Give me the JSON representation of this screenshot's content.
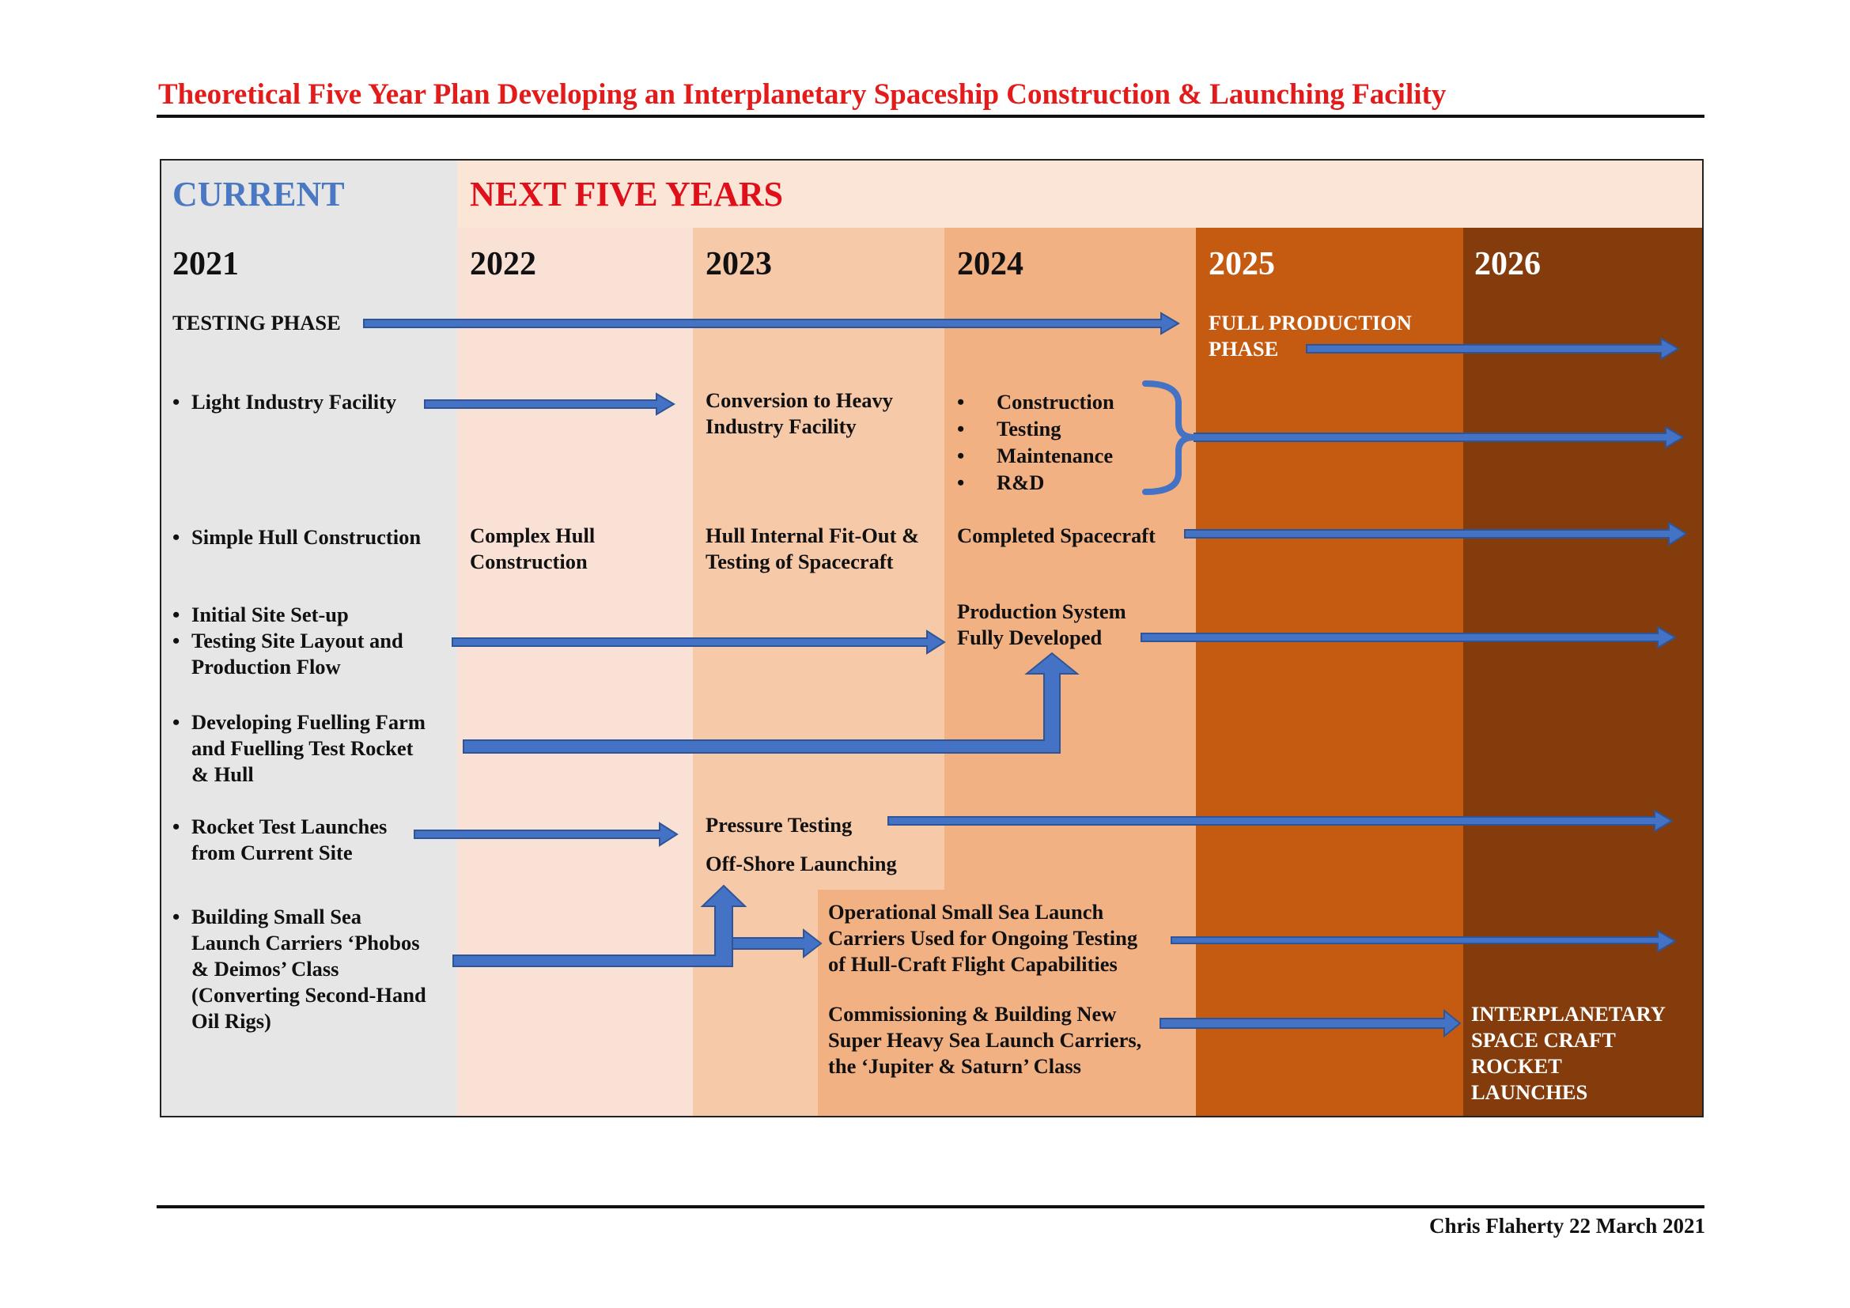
{
  "title": "Theoretical Five Year Plan Developing an Interplanetary Spaceship Construction & Launching Facility",
  "header": {
    "current": "CURRENT",
    "next": "NEXT FIVE YEARS"
  },
  "colors": {
    "title": "#e31b1b",
    "current_header": "#4a78c2",
    "next_header": "#e0101a",
    "arrow": "#4472c4",
    "arrow_edge": "#2f5597",
    "col_2021": "#e6e6e6",
    "col_2022": "#f9e2d5",
    "col_2023": "#f6c9a9",
    "col_2024": "#f2b183",
    "col_2025": "#c55a11",
    "col_2026": "#843c0c",
    "header_band": "#fbe5d6"
  },
  "years": [
    "2021",
    "2022",
    "2023",
    "2024",
    "2025",
    "2026"
  ],
  "testing_phase": "TESTING PHASE",
  "full_production_phase": [
    "FULL PRODUCTION",
    "PHASE"
  ],
  "current_items": {
    "light_industry": "Light Industry Facility",
    "simple_hull": "Simple Hull Construction",
    "site_setup": [
      "Initial Site Set-up",
      "Testing Site Layout and",
      "Production Flow"
    ],
    "fuelling": [
      "Developing Fuelling Farm",
      "and Fuelling Test Rocket",
      "& Hull"
    ],
    "rocket_tests": [
      "Rocket Test Launches",
      "from Current Site"
    ],
    "sea_carriers": [
      "Building Small Sea",
      "Launch Carriers ‘Phobos",
      "& Deimos’ Class",
      "(Converting Second-Hand",
      "Oil Rigs)"
    ]
  },
  "y2022": {
    "complex_hull": [
      "Complex Hull",
      "Construction"
    ]
  },
  "y2023": {
    "conversion": [
      "Conversion to Heavy",
      "Industry Facility"
    ],
    "fit_out": [
      "Hull Internal Fit-Out &",
      "Testing of Spacecraft"
    ],
    "pressure_testing": "Pressure Testing",
    "offshore": "Off-Shore Launching"
  },
  "y2024": {
    "activities": [
      "Construction",
      "Testing",
      "Maintenance",
      "R&D"
    ],
    "completed": "Completed Spacecraft",
    "production_system": [
      "Production System",
      "Fully Developed"
    ],
    "operational": [
      "Operational Small Sea Launch",
      "Carriers Used for Ongoing Testing",
      "of Hull-Craft Flight Capabilities"
    ],
    "commissioning": [
      "Commissioning & Building New",
      "Super Heavy Sea Launch Carriers,",
      "the ‘Jupiter & Saturn’ Class"
    ]
  },
  "y2026": {
    "launches": [
      "INTERPLANETARY",
      "SPACE CRAFT",
      "ROCKET",
      "LAUNCHES"
    ]
  },
  "footer": "Chris Flaherty 22 March 2021"
}
